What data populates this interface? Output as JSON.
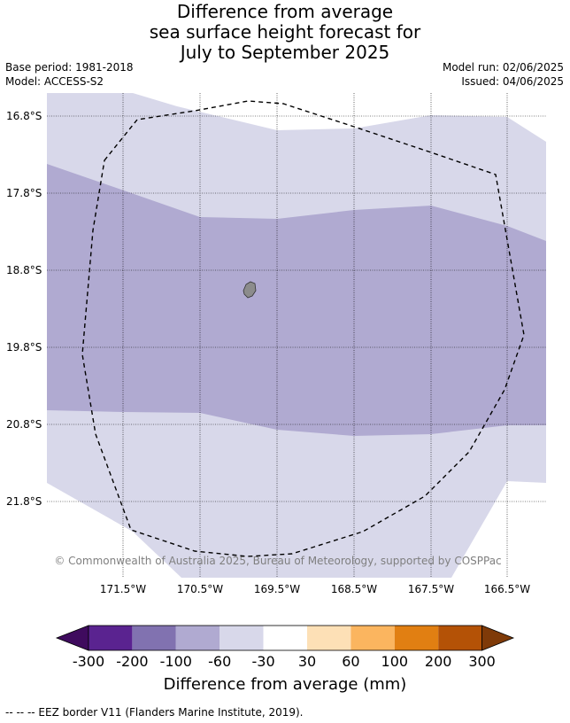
{
  "title": {
    "line1": "Difference from average",
    "line2": "sea surface height forecast for",
    "line3": "July to September 2025"
  },
  "info": {
    "base_period": "Base period: 1981-2018",
    "model": "Model: ACCESS-S2",
    "model_run": "Model run: 02/06/2025",
    "issued": "Issued: 04/06/2025"
  },
  "map": {
    "latitude_labels": [
      "16.8°S",
      "17.8°S",
      "18.8°S",
      "19.8°S",
      "20.8°S",
      "21.8°S"
    ],
    "longitude_labels": [
      "171.5°W",
      "170.5°W",
      "169.5°W",
      "168.5°W",
      "167.5°W",
      "166.5°W"
    ],
    "copyright": "© Commonwealth of Australia 2025, Bureau of Meteorology, supported by COSPPac",
    "colors": {
      "band_light": "#d8d8ea",
      "band_medium": "#b0aad1",
      "land": "#8c8c8c"
    }
  },
  "colorbar": {
    "ticks": [
      "-300",
      "-200",
      "-100",
      "-60",
      "-30",
      "30",
      "60",
      "100",
      "200",
      "300"
    ],
    "colors": [
      "#3f0b5e",
      "#5a2390",
      "#8172b0",
      "#b0aad1",
      "#d8d8ea",
      "#ffffff",
      "#fde0b6",
      "#fbb55f",
      "#e17f12",
      "#b45206",
      "#7f3a08"
    ],
    "label": "Difference from average (mm)"
  },
  "footer": {
    "eez_note": "--  --  -- EEZ border V11 (Flanders Marine Institute, 2019)."
  }
}
